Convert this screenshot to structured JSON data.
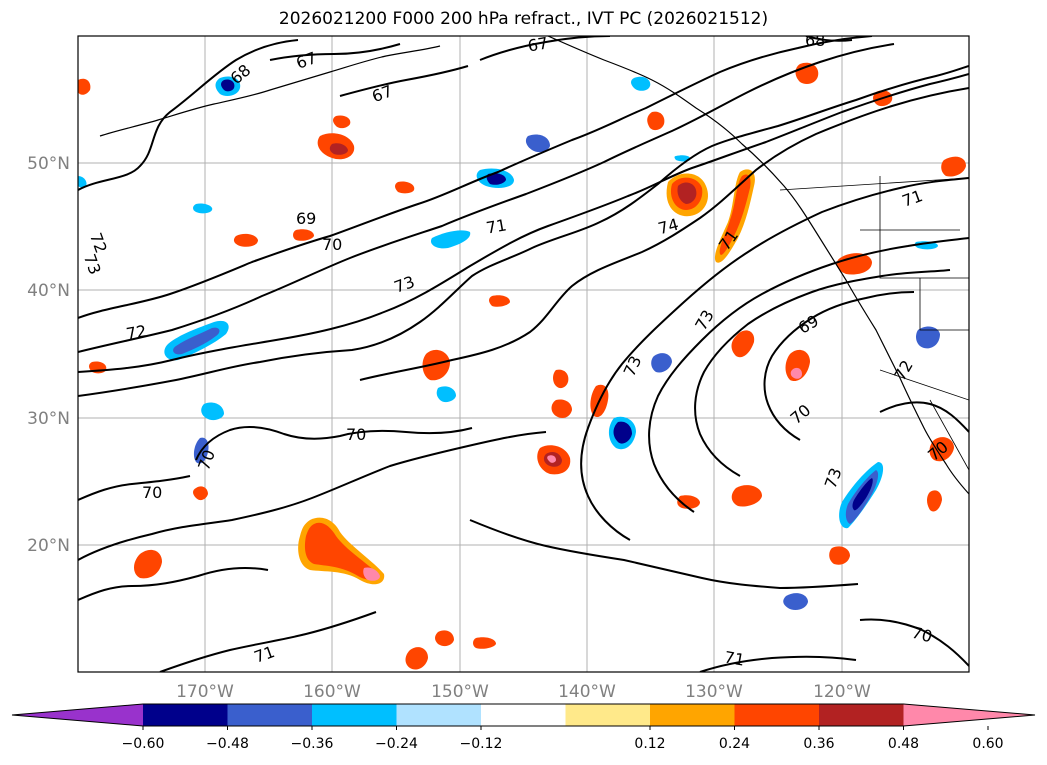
{
  "title": "2026021200 F000 200 hPa refract., IVT PC (2026021512)",
  "lat_labels": [
    "50°N",
    "40°N",
    "30°N",
    "20°N"
  ],
  "lon_labels": [
    "170°W",
    "160°W",
    "150°W",
    "140°W",
    "130°W",
    "120°W"
  ],
  "colorbar": {
    "ticks": [
      "−0.60",
      "−0.48",
      "−0.36",
      "−0.24",
      "−0.12",
      "0.12",
      "0.24",
      "0.36",
      "0.48",
      "0.60"
    ],
    "colors": [
      "#9932cc",
      "#00008b",
      "#3a5fcd",
      "#00bfff",
      "#b0e2ff",
      "#ffffff",
      "#ffe98a",
      "#ffa500",
      "#ff4500",
      "#b22222",
      "#ff88aa"
    ]
  },
  "contour_labels": [
    "67",
    "68",
    "67",
    "67",
    "68",
    "69",
    "70",
    "71",
    "72",
    "73",
    "72",
    "73",
    "74",
    "71",
    "71",
    "73",
    "73",
    "69",
    "72",
    "70",
    "73",
    "70",
    "70",
    "70",
    "71",
    "71",
    "70",
    "70"
  ]
}
